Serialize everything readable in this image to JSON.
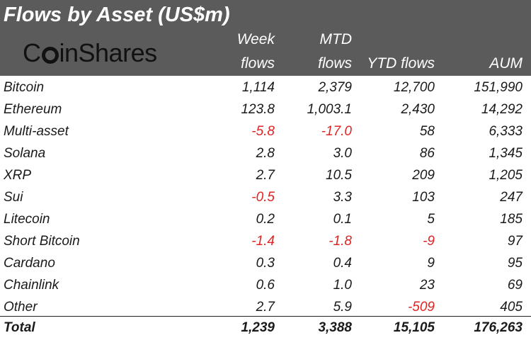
{
  "table": {
    "title": "Flows by Asset (US$m)",
    "logo_text": "CoinShares",
    "columns": {
      "week": [
        "Week",
        "flows"
      ],
      "mtd": [
        "MTD",
        "flows"
      ],
      "ytd": "YTD flows",
      "aum": "AUM"
    },
    "rows": [
      {
        "asset": "Bitcoin",
        "week": "1,114",
        "mtd": "2,379",
        "ytd": "12,700",
        "aum": "151,990"
      },
      {
        "asset": "Ethereum",
        "week": "123.8",
        "mtd": "1,003.1",
        "ytd": "2,430",
        "aum": "14,292"
      },
      {
        "asset": "Multi-asset",
        "week": "-5.8",
        "mtd": "-17.0",
        "ytd": "58",
        "aum": "6,333"
      },
      {
        "asset": "Solana",
        "week": "2.8",
        "mtd": "3.0",
        "ytd": "86",
        "aum": "1,345"
      },
      {
        "asset": "XRP",
        "week": "2.7",
        "mtd": "10.5",
        "ytd": "209",
        "aum": "1,205"
      },
      {
        "asset": "Sui",
        "week": "-0.5",
        "mtd": "3.3",
        "ytd": "103",
        "aum": "247"
      },
      {
        "asset": "Litecoin",
        "week": "0.2",
        "mtd": "0.1",
        "ytd": "5",
        "aum": "185"
      },
      {
        "asset": "Short Bitcoin",
        "week": "-1.4",
        "mtd": "-1.8",
        "ytd": "-9",
        "aum": "97"
      },
      {
        "asset": "Cardano",
        "week": "0.3",
        "mtd": "0.4",
        "ytd": "9",
        "aum": "95"
      },
      {
        "asset": "Chainlink",
        "week": "0.6",
        "mtd": "1.0",
        "ytd": "23",
        "aum": "69"
      },
      {
        "asset": "Other",
        "week": "2.7",
        "mtd": "5.9",
        "ytd": "-509",
        "aum": "405"
      }
    ],
    "total": {
      "asset": "Total",
      "week": "1,239",
      "mtd": "3,388",
      "ytd": "15,105",
      "aum": "176,263"
    }
  },
  "colors": {
    "header_bg": "#5b5b5b",
    "header_text": "#ffffff",
    "negative": "#e02424",
    "text": "#1a1a1a"
  }
}
